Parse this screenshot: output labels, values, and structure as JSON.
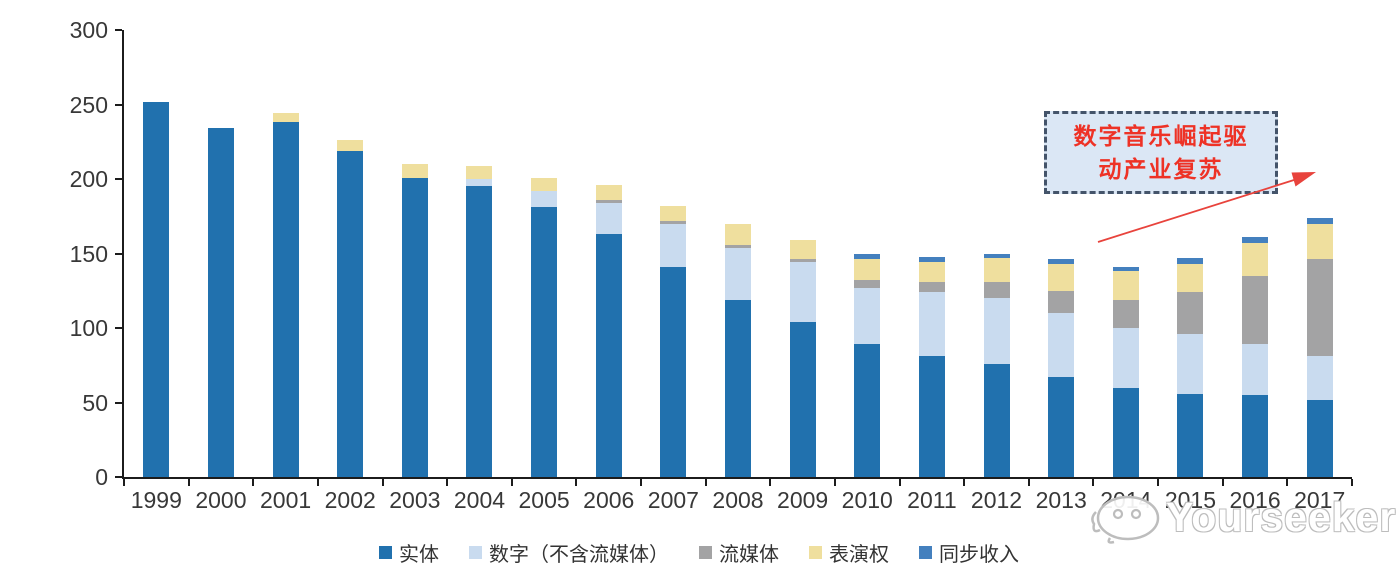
{
  "colors": {
    "axis": "#1c1c1c",
    "tick_label": "#383838",
    "annotation_fill": "#dbe7f5",
    "annotation_border": "#44546a",
    "annotation_text": "#ee3226",
    "arrow": "#e8433c",
    "watermark": "#bdbdbd"
  },
  "chart_data": {
    "type": "bar",
    "stacked": true,
    "title": "",
    "xlabel": "",
    "ylabel": "",
    "ylim": [
      0,
      300
    ],
    "yticks": [
      0,
      50,
      100,
      150,
      200,
      250,
      300
    ],
    "grid": false,
    "legend_position": "bottom",
    "categories": [
      "1999",
      "2000",
      "2001",
      "2002",
      "2003",
      "2004",
      "2005",
      "2006",
      "2007",
      "2008",
      "2009",
      "2010",
      "2011",
      "2012",
      "2013",
      "2014",
      "2015",
      "2016",
      "2017"
    ],
    "series": [
      {
        "name": "实体",
        "color": "#2171ae",
        "values": [
          252,
          234,
          238,
          219,
          201,
          195,
          181,
          163,
          141,
          119,
          104,
          89,
          81,
          76,
          67,
          60,
          56,
          55,
          52
        ]
      },
      {
        "name": "数字（不含流媒体）",
        "color": "#c9dbef",
        "values": [
          0,
          0,
          0,
          0,
          0,
          5,
          11,
          21,
          29,
          35,
          40,
          38,
          43,
          44,
          43,
          40,
          40,
          34,
          29
        ]
      },
      {
        "name": "流媒体",
        "color": "#a3a3a4",
        "values": [
          0,
          0,
          0,
          0,
          0,
          0,
          0,
          2,
          2,
          2,
          2,
          5,
          7,
          11,
          15,
          19,
          28,
          46,
          65
        ]
      },
      {
        "name": "表演权",
        "color": "#efdf9e",
        "values": [
          0,
          0,
          6,
          7,
          9,
          9,
          9,
          10,
          10,
          14,
          13,
          14,
          13,
          16,
          18,
          19,
          19,
          22,
          24
        ]
      },
      {
        "name": "同步收入",
        "color": "#4480be",
        "values": [
          0,
          0,
          0,
          0,
          0,
          0,
          0,
          0,
          0,
          0,
          0,
          4,
          4,
          3,
          3,
          3,
          4,
          4,
          4
        ]
      }
    ]
  },
  "annotation": {
    "line1": "数字音乐崛起驱",
    "line2": "动产业复苏"
  },
  "watermark": {
    "text": "Yourseeker"
  }
}
